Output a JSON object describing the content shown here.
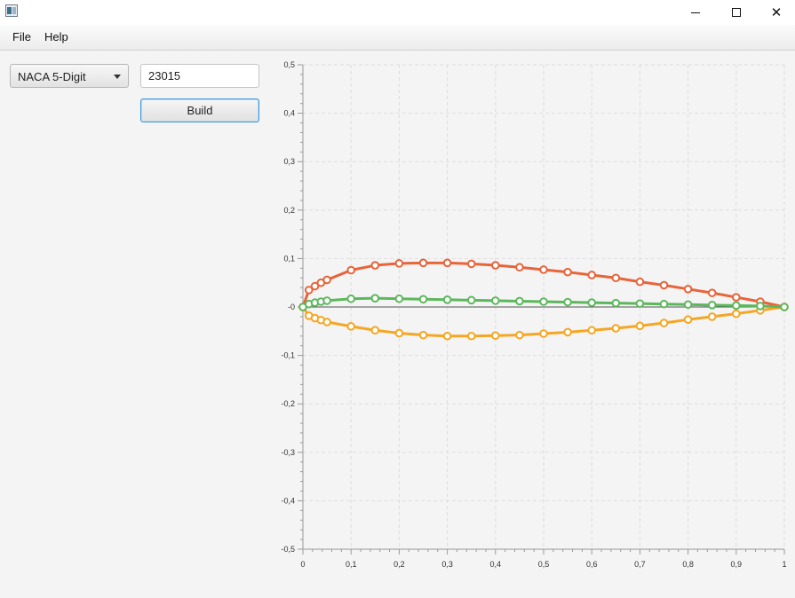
{
  "window": {
    "title": "",
    "icons": {
      "app": "app-icon",
      "minimize": "minimize-icon",
      "maximize": "maximize-icon",
      "close": "close-icon"
    }
  },
  "menu": {
    "file": "File",
    "help": "Help"
  },
  "controls": {
    "profile_type": "NACA 5-Digit",
    "code_value": "23015",
    "build_label": "Build"
  },
  "colors": {
    "upper": "#e8643a",
    "lower": "#f5a623",
    "camber": "#5cb85c",
    "grid": "#dddddd"
  },
  "chart_data": {
    "type": "line",
    "xlim": [
      0,
      1
    ],
    "ylim": [
      -0.5,
      0.5
    ],
    "grid": true,
    "legend": "none",
    "x_ticks": [
      "0",
      "0,1",
      "0,2",
      "0,3",
      "0,4",
      "0,5",
      "0,6",
      "0,7",
      "0,8",
      "0,9",
      "1"
    ],
    "y_ticks": [
      "-0,5",
      "-0,4",
      "-0,3",
      "-0,2",
      "-0,1",
      "-0",
      "0,1",
      "0,2",
      "0,3",
      "0,4",
      "0,5"
    ],
    "series": [
      {
        "color": "#e8643a",
        "x": [
          0,
          0.0125,
          0.025,
          0.0375,
          0.05,
          0.1,
          0.15,
          0.2,
          0.25,
          0.3,
          0.35,
          0.4,
          0.45,
          0.5,
          0.55,
          0.6,
          0.65,
          0.7,
          0.75,
          0.8,
          0.85,
          0.9,
          0.95,
          1.0
        ],
        "y": [
          0.0,
          0.035,
          0.043,
          0.05,
          0.056,
          0.076,
          0.086,
          0.09,
          0.091,
          0.091,
          0.089,
          0.086,
          0.082,
          0.077,
          0.072,
          0.066,
          0.06,
          0.052,
          0.045,
          0.037,
          0.029,
          0.02,
          0.011,
          0.0
        ]
      },
      {
        "color": "#f5a623",
        "x": [
          0,
          0.0125,
          0.025,
          0.0375,
          0.05,
          0.1,
          0.15,
          0.2,
          0.25,
          0.3,
          0.35,
          0.4,
          0.45,
          0.5,
          0.55,
          0.6,
          0.65,
          0.7,
          0.75,
          0.8,
          0.85,
          0.9,
          0.95,
          1.0
        ],
        "y": [
          0.0,
          -0.018,
          -0.023,
          -0.027,
          -0.031,
          -0.04,
          -0.048,
          -0.054,
          -0.058,
          -0.06,
          -0.06,
          -0.059,
          -0.058,
          -0.055,
          -0.052,
          -0.048,
          -0.044,
          -0.039,
          -0.033,
          -0.026,
          -0.02,
          -0.014,
          -0.007,
          0.0
        ]
      },
      {
        "color": "#5cb85c",
        "x": [
          0,
          0.0125,
          0.025,
          0.0375,
          0.05,
          0.1,
          0.15,
          0.2,
          0.25,
          0.3,
          0.35,
          0.4,
          0.45,
          0.5,
          0.55,
          0.6,
          0.65,
          0.7,
          0.75,
          0.8,
          0.85,
          0.9,
          0.95,
          1.0
        ],
        "y": [
          0.0,
          0.006,
          0.009,
          0.011,
          0.013,
          0.017,
          0.018,
          0.017,
          0.016,
          0.015,
          0.014,
          0.013,
          0.012,
          0.011,
          0.01,
          0.009,
          0.008,
          0.007,
          0.006,
          0.005,
          0.004,
          0.003,
          0.002,
          0.0
        ]
      }
    ]
  }
}
